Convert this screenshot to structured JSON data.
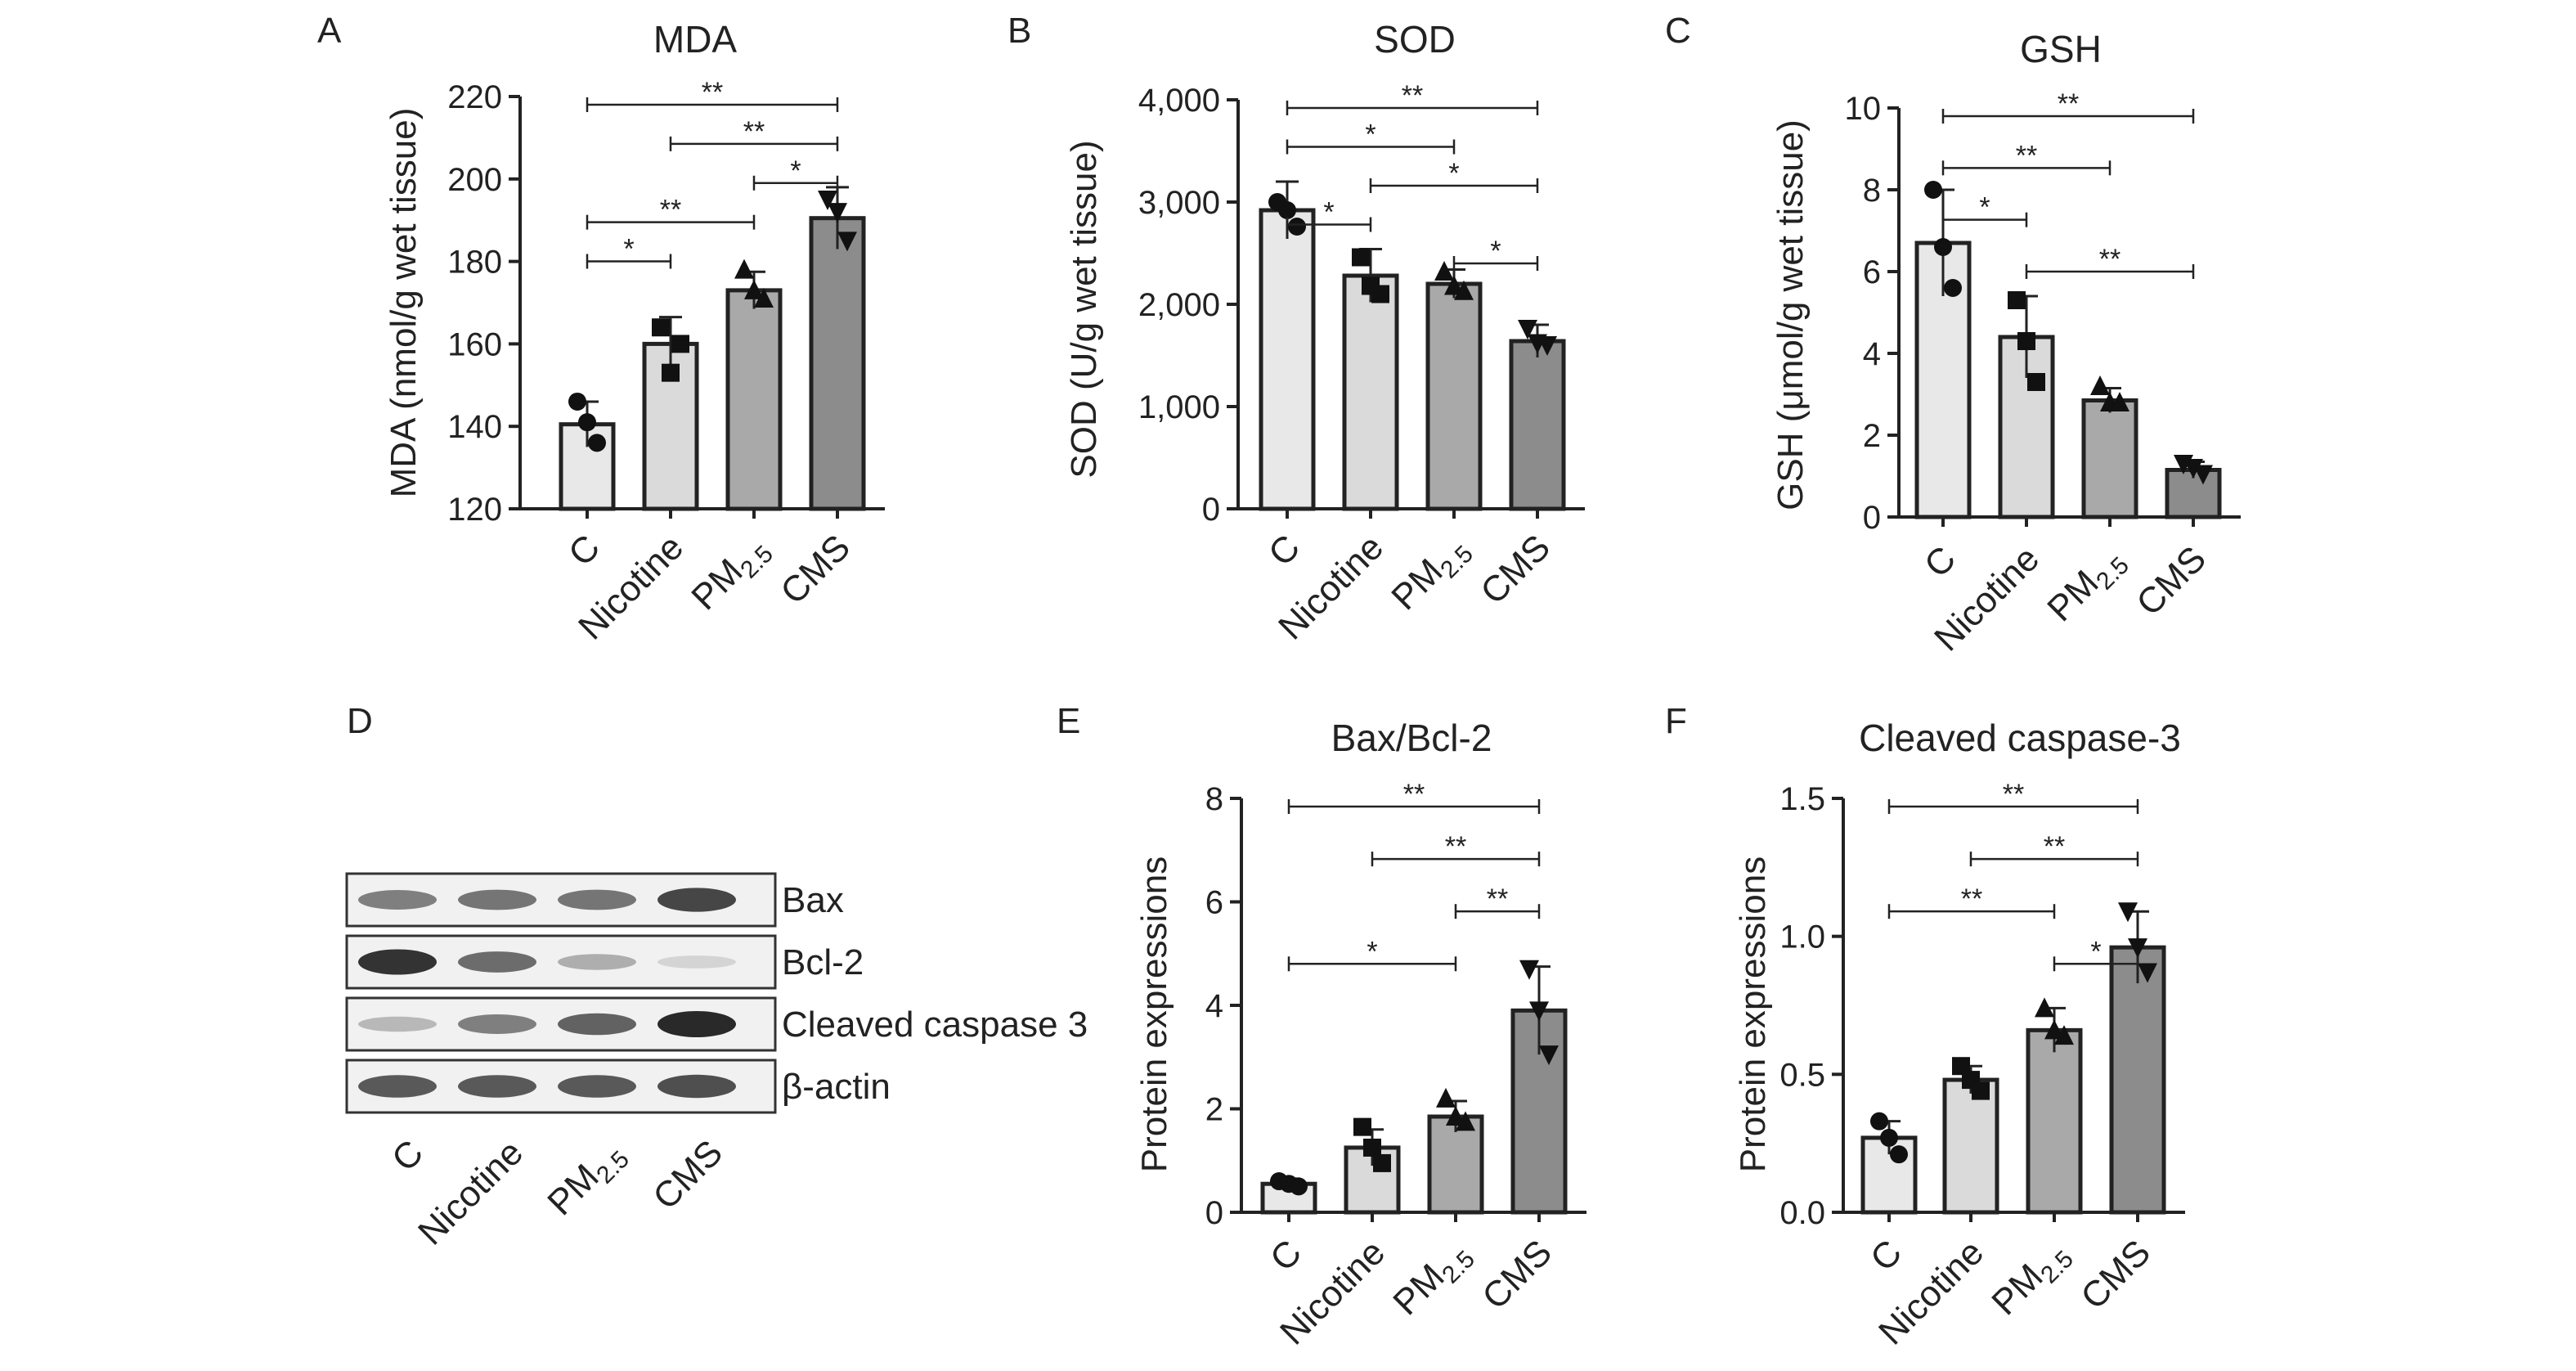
{
  "panels": [
    {
      "letter": "A",
      "chart_data": {
        "type": "bar",
        "title": "MDA",
        "xlabel": "",
        "ylabel": "MDA (nmol/g wet tissue)",
        "ylim": [
          120,
          220
        ],
        "yticks": [
          120,
          140,
          160,
          180,
          200,
          220
        ],
        "ytick_labels": [
          "120",
          "140",
          "160",
          "180",
          "200",
          "220"
        ],
        "categories": [
          "C",
          "Nicotine",
          "PM2.5",
          "CMS"
        ],
        "colors": [
          "#e8e8e8",
          "#dadada",
          "#a9a9a9",
          "#8c8c8c"
        ],
        "values": [
          140.5,
          160,
          173,
          190.5
        ],
        "errors": [
          5.5,
          6.5,
          4.5,
          7.5
        ],
        "points": [
          [
            146,
            141,
            136
          ],
          [
            164,
            153,
            160
          ],
          [
            178,
            173,
            171
          ],
          [
            195,
            192,
            185
          ]
        ],
        "markers": [
          "circle",
          "square",
          "triangle",
          "triangle-down"
        ],
        "brackets": [
          {
            "from": 0,
            "to": 1,
            "label": "*"
          },
          {
            "from": 0,
            "to": 2,
            "label": "**"
          },
          {
            "from": 2,
            "to": 3,
            "label": "*"
          },
          {
            "from": 1,
            "to": 3,
            "label": "**"
          },
          {
            "from": 0,
            "to": 3,
            "label": "**"
          }
        ]
      }
    },
    {
      "letter": "B",
      "chart_data": {
        "type": "bar",
        "title": "SOD",
        "xlabel": "",
        "ylabel": "SOD (U/g wet tissue)",
        "ylim": [
          0,
          4000
        ],
        "yticks": [
          0,
          1000,
          2000,
          3000,
          4000
        ],
        "ytick_labels": [
          "0",
          "1,000",
          "2,000",
          "3,000",
          "4,000"
        ],
        "categories": [
          "C",
          "Nicotine",
          "PM2.5",
          "CMS"
        ],
        "colors": [
          "#e8e8e8",
          "#dadada",
          "#a9a9a9",
          "#8c8c8c"
        ],
        "values": [
          2920,
          2280,
          2200,
          1640
        ],
        "errors": [
          280,
          260,
          140,
          160
        ],
        "points": [
          [
            3000,
            2920,
            2760
          ],
          [
            2460,
            2180,
            2100
          ],
          [
            2320,
            2180,
            2130
          ],
          [
            1760,
            1620,
            1600
          ]
        ],
        "markers": [
          "circle",
          "square",
          "triangle",
          "triangle-down"
        ],
        "brackets": [
          {
            "from": 2,
            "to": 3,
            "label": "*"
          },
          {
            "from": 0,
            "to": 1,
            "label": "*"
          },
          {
            "from": 1,
            "to": 3,
            "label": "*"
          },
          {
            "from": 0,
            "to": 2,
            "label": "*"
          },
          {
            "from": 0,
            "to": 3,
            "label": "**"
          }
        ]
      }
    },
    {
      "letter": "C",
      "chart_data": {
        "type": "bar",
        "title": "GSH",
        "xlabel": "",
        "ylabel": "GSH (μmol/g wet tissue)",
        "ylim": [
          0,
          10
        ],
        "yticks": [
          0,
          2,
          4,
          6,
          8,
          10
        ],
        "ytick_labels": [
          "0",
          "2",
          "4",
          "6",
          "8",
          "10"
        ],
        "categories": [
          "C",
          "Nicotine",
          "PM2.5",
          "CMS"
        ],
        "colors": [
          "#e8e8e8",
          "#dadada",
          "#a9a9a9",
          "#8c8c8c"
        ],
        "values": [
          6.7,
          4.4,
          2.85,
          1.15
        ],
        "errors": [
          1.3,
          1.0,
          0.3,
          0.2
        ],
        "points": [
          [
            8.0,
            6.6,
            5.6
          ],
          [
            5.3,
            4.3,
            3.3
          ],
          [
            3.2,
            2.8,
            2.8
          ],
          [
            1.3,
            1.2,
            1.05
          ]
        ],
        "markers": [
          "circle",
          "square",
          "triangle",
          "triangle-down"
        ],
        "brackets": [
          {
            "from": 1,
            "to": 3,
            "label": "**"
          },
          {
            "from": 0,
            "to": 1,
            "label": "*"
          },
          {
            "from": 0,
            "to": 2,
            "label": "**"
          },
          {
            "from": 0,
            "to": 3,
            "label": "**"
          }
        ]
      }
    },
    {
      "letter": "E",
      "chart_data": {
        "type": "bar",
        "title": "Bax/Bcl-2",
        "xlabel": "",
        "ylabel": "Protein expressions",
        "ylim": [
          0,
          8
        ],
        "yticks": [
          0,
          2,
          4,
          6,
          8
        ],
        "ytick_labels": [
          "0",
          "2",
          "4",
          "6",
          "8"
        ],
        "categories": [
          "C",
          "Nicotine",
          "PM2.5",
          "CMS"
        ],
        "colors": [
          "#e8e8e8",
          "#dadada",
          "#a9a9a9",
          "#8c8c8c"
        ],
        "values": [
          0.55,
          1.25,
          1.85,
          3.9
        ],
        "errors": [
          0.1,
          0.35,
          0.3,
          0.85
        ],
        "points": [
          [
            0.6,
            0.55,
            0.5
          ],
          [
            1.65,
            1.25,
            0.95
          ],
          [
            2.2,
            1.85,
            1.75
          ],
          [
            4.7,
            3.9,
            3.05
          ]
        ],
        "markers": [
          "circle",
          "square",
          "triangle",
          "triangle-down"
        ],
        "brackets": [
          {
            "from": 0,
            "to": 2,
            "label": "*"
          },
          {
            "from": 2,
            "to": 3,
            "label": "**"
          },
          {
            "from": 1,
            "to": 3,
            "label": "**"
          },
          {
            "from": 0,
            "to": 3,
            "label": "**"
          }
        ]
      }
    },
    {
      "letter": "F",
      "chart_data": {
        "type": "bar",
        "title": "Cleaved caspase-3",
        "xlabel": "",
        "ylabel": "Protein expressions",
        "ylim": [
          0,
          1.5
        ],
        "yticks": [
          0,
          0.5,
          1.0,
          1.5
        ],
        "ytick_labels": [
          "0.0",
          "0.5",
          "1.0",
          "1.5"
        ],
        "categories": [
          "C",
          "Nicotine",
          "PM2.5",
          "CMS"
        ],
        "colors": [
          "#e8e8e8",
          "#dadada",
          "#a9a9a9",
          "#8c8c8c"
        ],
        "values": [
          0.27,
          0.48,
          0.66,
          0.96
        ],
        "errors": [
          0.06,
          0.05,
          0.08,
          0.13
        ],
        "points": [
          [
            0.33,
            0.27,
            0.21
          ],
          [
            0.53,
            0.48,
            0.44
          ],
          [
            0.74,
            0.66,
            0.64
          ],
          [
            1.09,
            0.96,
            0.87
          ]
        ],
        "markers": [
          "circle",
          "square",
          "triangle",
          "triangle-down"
        ],
        "brackets": [
          {
            "from": 2,
            "to": 3,
            "label": "*"
          },
          {
            "from": 0,
            "to": 2,
            "label": "**"
          },
          {
            "from": 1,
            "to": 3,
            "label": "**"
          },
          {
            "from": 0,
            "to": 3,
            "label": "**"
          }
        ]
      }
    }
  ],
  "blot": {
    "letter": "D",
    "bands": [
      "Bax",
      "Bcl-2",
      "Cleaved caspase 3",
      "β-actin"
    ],
    "lanes": [
      "C",
      "Nicotine",
      "PM2.5",
      "CMS"
    ],
    "intensity": [
      [
        0.55,
        0.6,
        0.6,
        0.85
      ],
      [
        0.95,
        0.65,
        0.3,
        0.1
      ],
      [
        0.25,
        0.55,
        0.7,
        1.0
      ],
      [
        0.75,
        0.75,
        0.75,
        0.8
      ]
    ]
  }
}
